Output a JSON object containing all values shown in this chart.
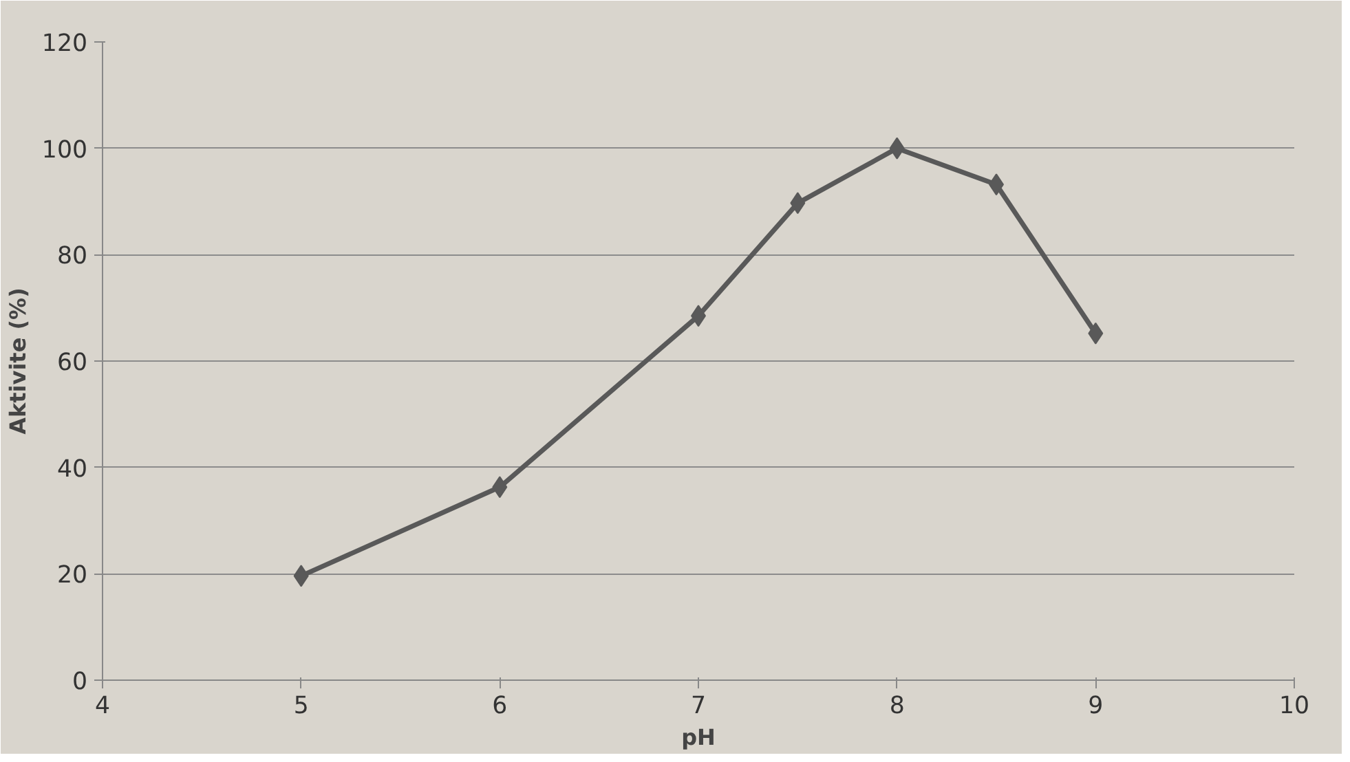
{
  "chart_data": {
    "type": "line",
    "xlabel": "pH",
    "ylabel": "Aktivite (%)",
    "x": [
      5,
      6,
      7,
      7.5,
      8,
      8.5,
      9
    ],
    "series": [
      {
        "color": "#595959",
        "values": [
          19.6,
          36.3,
          68.5,
          89.7,
          100,
          93.2,
          65.2
        ]
      }
    ],
    "xlim": [
      4,
      10
    ],
    "xticks": [
      4,
      5,
      6,
      7,
      8,
      9,
      10
    ],
    "ylim": [
      0,
      120
    ],
    "yticks": [
      0,
      20,
      40,
      60,
      80,
      100,
      120
    ],
    "grid": "y",
    "marker": "diamond",
    "line_style": "solid"
  }
}
